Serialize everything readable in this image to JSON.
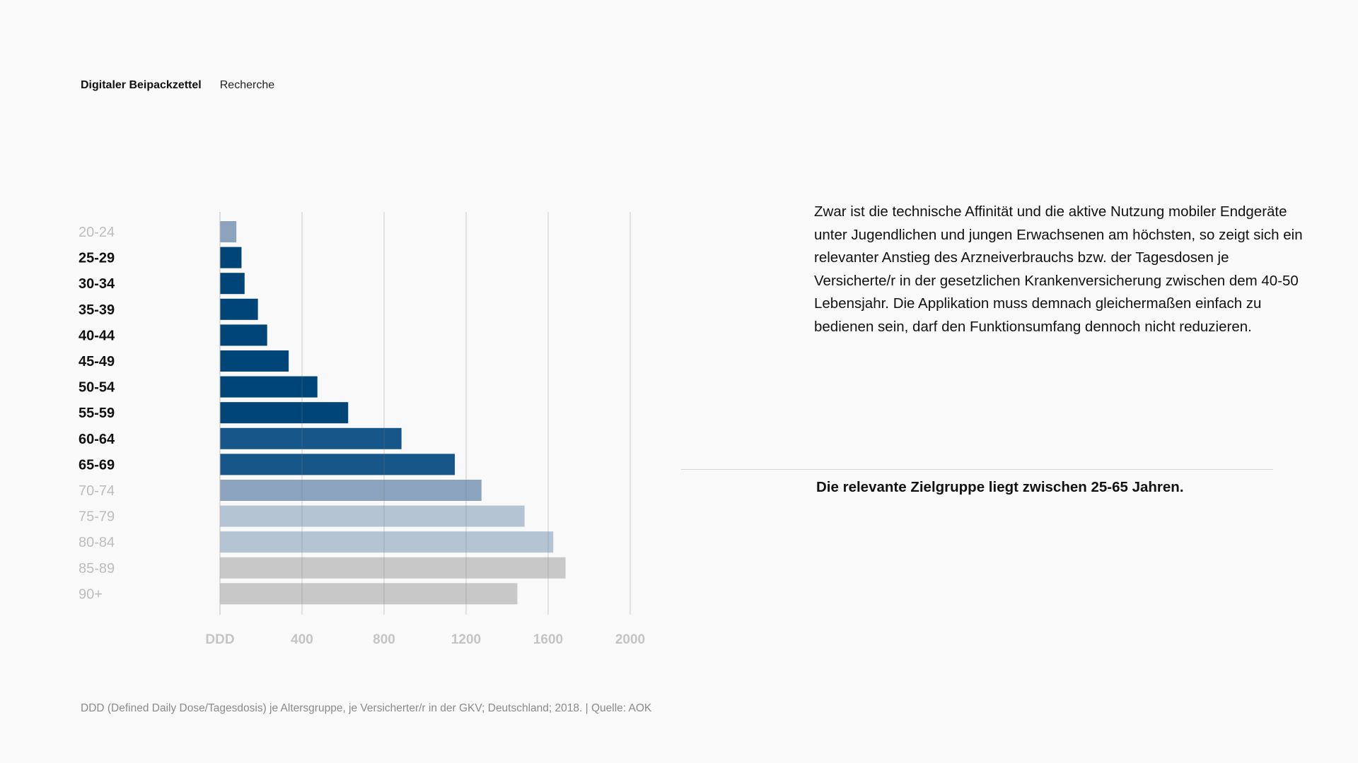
{
  "header": {
    "brand": "Digitaler Beipackzettel",
    "section": "Recherche"
  },
  "chart_data": {
    "type": "bar",
    "orientation": "horizontal",
    "categories": [
      "20-24",
      "25-29",
      "30-34",
      "35-39",
      "40-44",
      "45-49",
      "50-54",
      "55-59",
      "60-64",
      "65-69",
      "70-74",
      "75-79",
      "80-84",
      "85-89",
      "90+"
    ],
    "values": [
      80,
      105,
      120,
      185,
      230,
      335,
      475,
      625,
      885,
      1145,
      1275,
      1485,
      1625,
      1685,
      1450
    ],
    "highlighted": [
      false,
      true,
      true,
      true,
      true,
      true,
      true,
      true,
      true,
      true,
      false,
      false,
      false,
      false,
      false
    ],
    "bar_colors": [
      "#8ba3bd",
      "#004577",
      "#004577",
      "#004577",
      "#004577",
      "#004577",
      "#004577",
      "#004577",
      "#175689",
      "#175689",
      "#8ba3bd",
      "#b4c4d3",
      "#b4c4d3",
      "#c8c8c8",
      "#c8c8c8"
    ],
    "x_ticks": [
      "DDD",
      "400",
      "800",
      "1200",
      "1600",
      "2000"
    ],
    "xlim": [
      0,
      2000
    ],
    "grid": true,
    "colors": {
      "highlight_label": "#111111",
      "muted_label": "#bdbdbd",
      "gridline": "#cfcfcf"
    }
  },
  "text": {
    "paragraph": "Zwar ist die technische Affinität und die aktive Nutzung mobiler Endgeräte unter Jugendlichen und jungen Erwachsenen am höchsten, so zeigt sich ein relevanter Anstieg des Arzneiverbrauchs bzw. der Tagesdosen je Versicherte/r in der gesetzlichen Krankenversicherung zwischen dem 40-50 Lebensjahr. Die Applikation muss demnach gleichermaßen einfach zu bedienen sein, darf den Funktionsumfang dennoch nicht reduzieren.",
    "highlight": "Die relevante Zielgruppe liegt zwischen 25-65 Jahren.",
    "footnote": "DDD (Defined Daily Dose/Tagesdosis) je Altersgruppe, je Versicherter/r in der GKV; Deutschland; 2018. | Quelle: AOK"
  }
}
